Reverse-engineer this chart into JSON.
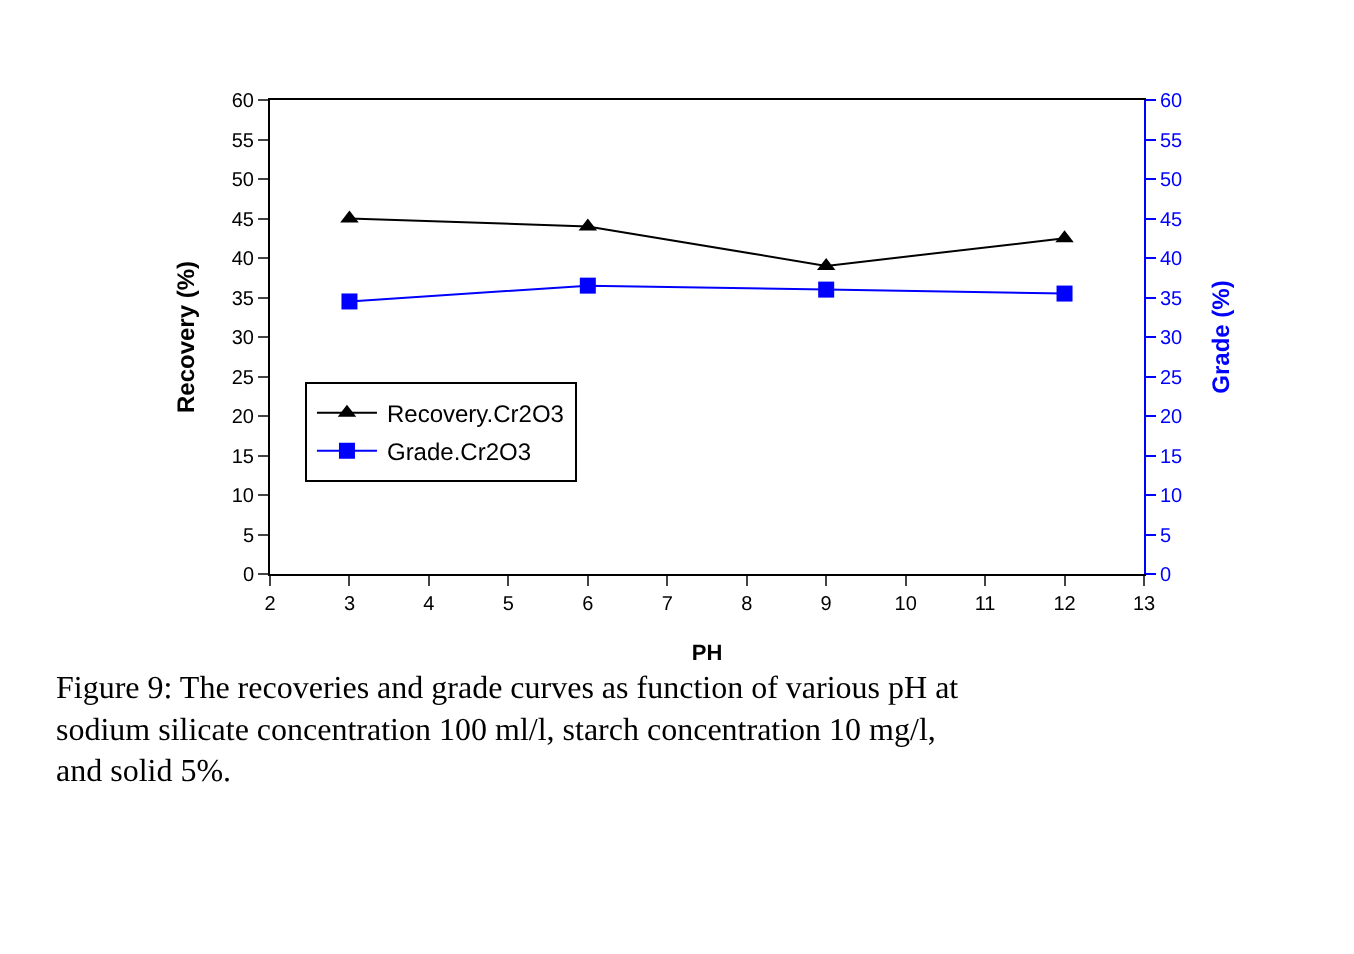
{
  "chart_data": {
    "type": "line",
    "xlabel": "PH",
    "ylabel": "Recovery (%)",
    "y2label": "Grade (%)",
    "x": [
      3,
      6,
      9,
      12
    ],
    "series": [
      {
        "name": "Recovery.Cr2O3",
        "color": "#000000",
        "marker": "triangle",
        "values": [
          45,
          44,
          39,
          42.5
        ]
      },
      {
        "name": "Grade.Cr2O3",
        "color": "#0000ff",
        "marker": "square",
        "axis": "y2",
        "values": [
          34.5,
          36.5,
          36,
          35.5
        ]
      }
    ],
    "xlim": [
      2,
      13
    ],
    "xticks": [
      2,
      3,
      4,
      5,
      6,
      7,
      8,
      9,
      10,
      11,
      12,
      13
    ],
    "ylim": [
      0,
      60
    ],
    "yticks": [
      0,
      5,
      10,
      15,
      20,
      25,
      30,
      35,
      40,
      45,
      50,
      55,
      60
    ],
    "y2lim": [
      0,
      60
    ],
    "y2ticks": [
      0,
      5,
      10,
      15,
      20,
      25,
      30,
      35,
      40,
      45,
      50,
      55,
      60
    ],
    "legend": "left",
    "line_style": "solid",
    "annotations": [
      "Figure 9: The recoveries and grade curves as function of various pH at sodium silicate concentration 100 ml/l, starch concentration 10 mg/l, and solid 5%."
    ]
  }
}
